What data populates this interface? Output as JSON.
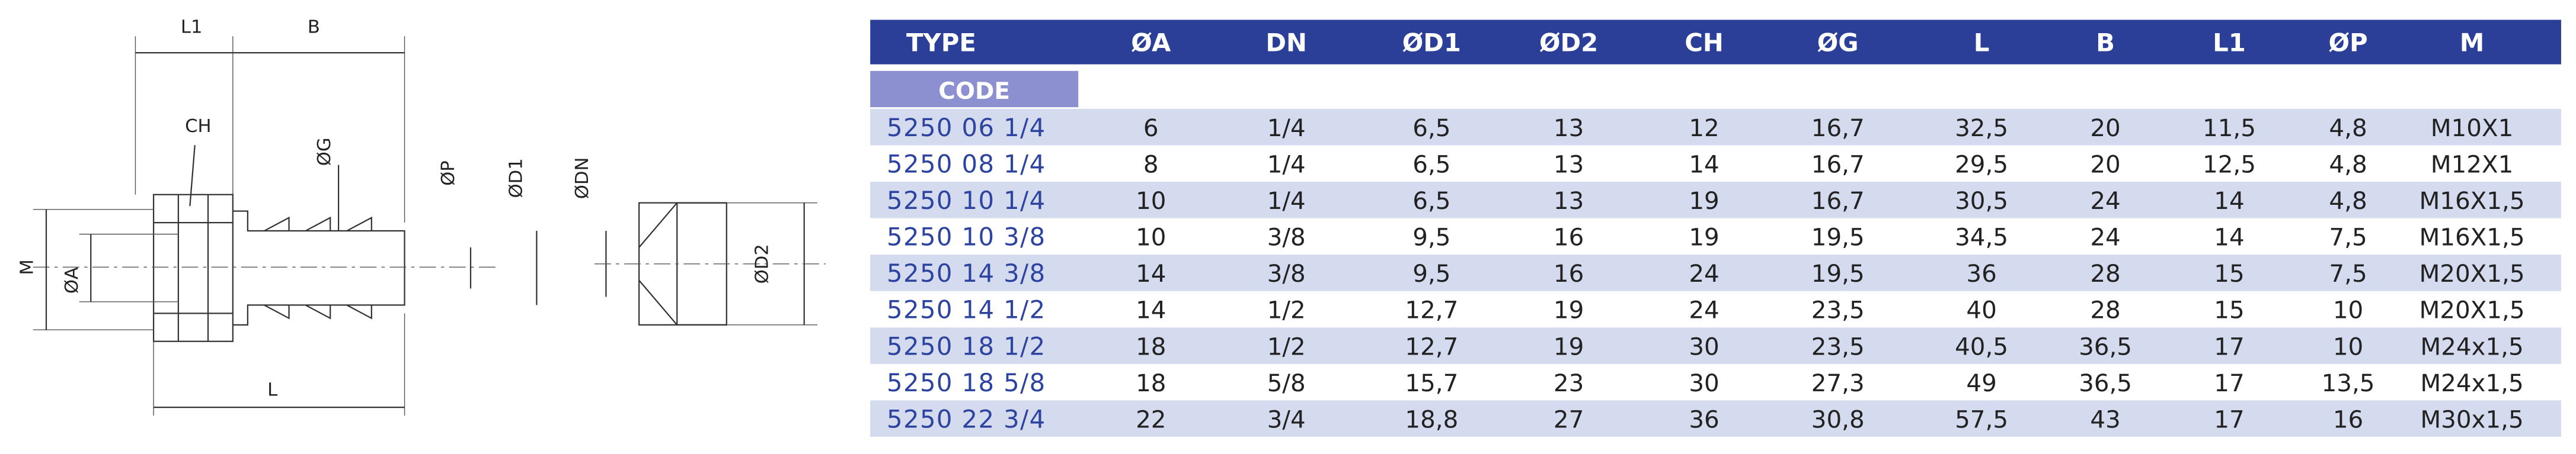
{
  "drawing": {
    "labels": [
      "L1",
      "B",
      "CH",
      "ØG",
      "ØP",
      "ØD1",
      "ØDN",
      "M",
      "ØA",
      "ØD2",
      "L"
    ]
  },
  "table": {
    "header": [
      "TYPE",
      "ØA",
      "DN",
      "ØD1",
      "ØD2",
      "CH",
      "ØG",
      "L",
      "B",
      "L1",
      "ØP",
      "M"
    ],
    "code_label": "CODE",
    "rows": [
      [
        "5250 06 1/4",
        "6",
        "1/4",
        "6,5",
        "13",
        "12",
        "16,7",
        "32,5",
        "20",
        "11,5",
        "4,8",
        "M10X1"
      ],
      [
        "5250 08 1/4",
        "8",
        "1/4",
        "6,5",
        "13",
        "14",
        "16,7",
        "29,5",
        "20",
        "12,5",
        "4,8",
        "M12X1"
      ],
      [
        "5250 10 1/4",
        "10",
        "1/4",
        "6,5",
        "13",
        "19",
        "16,7",
        "30,5",
        "24",
        "14",
        "4,8",
        "M16X1,5"
      ],
      [
        "5250 10 3/8",
        "10",
        "3/8",
        "9,5",
        "16",
        "19",
        "19,5",
        "34,5",
        "24",
        "14",
        "7,5",
        "M16X1,5"
      ],
      [
        "5250 14 3/8",
        "14",
        "3/8",
        "9,5",
        "16",
        "24",
        "19,5",
        "36",
        "28",
        "15",
        "7,5",
        "M20X1,5"
      ],
      [
        "5250 14 1/2",
        "14",
        "1/2",
        "12,7",
        "19",
        "24",
        "23,5",
        "40",
        "28",
        "15",
        "10",
        "M20X1,5"
      ],
      [
        "5250 18 1/2",
        "18",
        "1/2",
        "12,7",
        "19",
        "30",
        "23,5",
        "40,5",
        "36,5",
        "17",
        "10",
        "M24x1,5"
      ],
      [
        "5250 18 5/8",
        "18",
        "5/8",
        "15,7",
        "23",
        "30",
        "27,3",
        "49",
        "36,5",
        "17",
        "13,5",
        "M24x1,5"
      ],
      [
        "5250 22 3/4",
        "22",
        "3/4",
        "18,8",
        "27",
        "36",
        "30,8",
        "57,5",
        "43",
        "17",
        "16",
        "M30x1,5"
      ]
    ]
  }
}
